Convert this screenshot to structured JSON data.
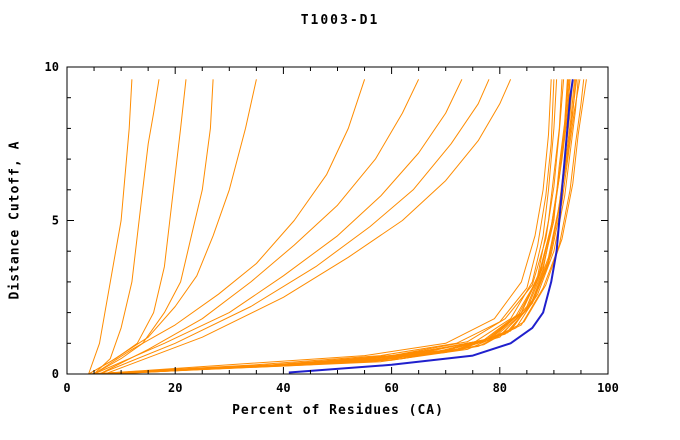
{
  "chart_data": {
    "type": "line",
    "title": "T1003-D1",
    "xlabel": "Percent of Residues (CA)",
    "ylabel": "Distance Cutoff, A",
    "xlim": [
      0,
      100
    ],
    "ylim": [
      0,
      10
    ],
    "x_major_ticks": [
      0,
      20,
      40,
      60,
      80,
      100
    ],
    "x_minor_step": 5,
    "y_major_ticks": [
      0,
      5,
      10
    ],
    "y_minor_step": 1,
    "grid": false,
    "legend": "none",
    "series_color": "#ff8c00",
    "highlight_color": "#2020cd",
    "axis_color": "#000000",
    "orange_series": [
      [
        [
          4,
          0
        ],
        [
          6,
          1
        ],
        [
          7,
          2
        ],
        [
          8,
          3
        ],
        [
          9,
          4
        ],
        [
          10,
          5
        ],
        [
          10.5,
          6
        ],
        [
          11,
          7
        ],
        [
          11.5,
          8
        ],
        [
          12,
          9.6
        ]
      ],
      [
        [
          5,
          0
        ],
        [
          8,
          0.5
        ],
        [
          10,
          1.5
        ],
        [
          12,
          3
        ],
        [
          13,
          4.5
        ],
        [
          14,
          6
        ],
        [
          15,
          7.5
        ],
        [
          16,
          8.5
        ],
        [
          17,
          9.6
        ]
      ],
      [
        [
          4,
          0
        ],
        [
          9,
          0.5
        ],
        [
          13,
          1
        ],
        [
          16,
          2
        ],
        [
          18,
          3.5
        ],
        [
          19,
          5
        ],
        [
          20,
          6.5
        ],
        [
          21,
          8
        ],
        [
          22,
          9.6
        ]
      ],
      [
        [
          5,
          0
        ],
        [
          10,
          0.5
        ],
        [
          14,
          1
        ],
        [
          18,
          2
        ],
        [
          21,
          3
        ],
        [
          23,
          4.5
        ],
        [
          25,
          6
        ],
        [
          26.5,
          8
        ],
        [
          27,
          9.6
        ]
      ],
      [
        [
          4,
          0
        ],
        [
          8,
          0.4
        ],
        [
          15,
          1.2
        ],
        [
          20,
          2.2
        ],
        [
          24,
          3.2
        ],
        [
          27,
          4.5
        ],
        [
          30,
          6
        ],
        [
          33,
          8
        ],
        [
          35,
          9.6
        ]
      ],
      [
        [
          5,
          0
        ],
        [
          12,
          0.8
        ],
        [
          20,
          1.6
        ],
        [
          28,
          2.6
        ],
        [
          35,
          3.6
        ],
        [
          42,
          5
        ],
        [
          48,
          6.5
        ],
        [
          52,
          8
        ],
        [
          55,
          9.6
        ]
      ],
      [
        [
          6,
          0
        ],
        [
          15,
          0.8
        ],
        [
          25,
          1.8
        ],
        [
          34,
          3
        ],
        [
          42,
          4.2
        ],
        [
          50,
          5.5
        ],
        [
          57,
          7
        ],
        [
          62,
          8.5
        ],
        [
          65,
          9.6
        ]
      ],
      [
        [
          5,
          0
        ],
        [
          18,
          1
        ],
        [
          30,
          2
        ],
        [
          40,
          3.2
        ],
        [
          50,
          4.5
        ],
        [
          58,
          5.8
        ],
        [
          65,
          7.2
        ],
        [
          70,
          8.5
        ],
        [
          73,
          9.6
        ]
      ],
      [
        [
          6,
          0
        ],
        [
          20,
          1
        ],
        [
          34,
          2.2
        ],
        [
          46,
          3.5
        ],
        [
          56,
          4.8
        ],
        [
          64,
          6
        ],
        [
          71,
          7.5
        ],
        [
          76,
          8.8
        ],
        [
          78,
          9.6
        ]
      ],
      [
        [
          7,
          0
        ],
        [
          25,
          1.2
        ],
        [
          40,
          2.5
        ],
        [
          52,
          3.8
        ],
        [
          62,
          5
        ],
        [
          70,
          6.3
        ],
        [
          76,
          7.6
        ],
        [
          80,
          8.8
        ],
        [
          82,
          9.6
        ]
      ],
      [
        [
          4,
          0
        ],
        [
          40,
          0.3
        ],
        [
          60,
          0.6
        ],
        [
          75,
          1
        ],
        [
          82,
          1.8
        ],
        [
          86,
          3
        ],
        [
          88,
          4.5
        ],
        [
          89,
          6
        ],
        [
          90,
          8
        ],
        [
          90.5,
          9.6
        ]
      ],
      [
        [
          5,
          0
        ],
        [
          45,
          0.3
        ],
        [
          65,
          0.6
        ],
        [
          78,
          1.1
        ],
        [
          84,
          2
        ],
        [
          87,
          3.2
        ],
        [
          89,
          5
        ],
        [
          90,
          6.5
        ],
        [
          91,
          8
        ],
        [
          91.5,
          9.6
        ]
      ],
      [
        [
          6,
          0
        ],
        [
          50,
          0.35
        ],
        [
          70,
          0.7
        ],
        [
          80,
          1.2
        ],
        [
          85,
          2.2
        ],
        [
          88,
          3.5
        ],
        [
          90,
          5
        ],
        [
          91,
          6.8
        ],
        [
          92,
          8.2
        ],
        [
          92.5,
          9.6
        ]
      ],
      [
        [
          5,
          0
        ],
        [
          55,
          0.4
        ],
        [
          72,
          0.8
        ],
        [
          82,
          1.4
        ],
        [
          86,
          2.4
        ],
        [
          89,
          3.8
        ],
        [
          91,
          5.5
        ],
        [
          92,
          7
        ],
        [
          93,
          8.5
        ],
        [
          93.5,
          9.6
        ]
      ],
      [
        [
          7,
          0
        ],
        [
          58,
          0.4
        ],
        [
          74,
          0.8
        ],
        [
          83,
          1.5
        ],
        [
          87,
          2.6
        ],
        [
          90,
          4
        ],
        [
          92,
          5.8
        ],
        [
          93,
          7.2
        ],
        [
          94,
          8.6
        ],
        [
          94.5,
          9.6
        ]
      ],
      [
        [
          6,
          0
        ],
        [
          60,
          0.45
        ],
        [
          76,
          0.9
        ],
        [
          84,
          1.6
        ],
        [
          88,
          2.8
        ],
        [
          91,
          4.2
        ],
        [
          93,
          6
        ],
        [
          94,
          7.5
        ],
        [
          95,
          8.8
        ],
        [
          95.5,
          9.6
        ]
      ],
      [
        [
          4,
          0
        ],
        [
          35,
          0.3
        ],
        [
          58,
          0.6
        ],
        [
          72,
          1
        ],
        [
          80,
          1.7
        ],
        [
          85,
          2.8
        ],
        [
          87,
          4.2
        ],
        [
          88.5,
          5.8
        ],
        [
          89.5,
          7.5
        ],
        [
          90,
          9.6
        ]
      ],
      [
        [
          5,
          0
        ],
        [
          30,
          0.3
        ],
        [
          55,
          0.6
        ],
        [
          70,
          1
        ],
        [
          79,
          1.8
        ],
        [
          84,
          3
        ],
        [
          86.5,
          4.5
        ],
        [
          88,
          6
        ],
        [
          89,
          7.8
        ],
        [
          89.5,
          9.6
        ]
      ],
      [
        [
          8,
          0
        ],
        [
          48,
          0.35
        ],
        [
          68,
          0.7
        ],
        [
          79,
          1.2
        ],
        [
          85,
          2.1
        ],
        [
          88,
          3.4
        ],
        [
          90,
          5.2
        ],
        [
          91.5,
          7
        ],
        [
          92.5,
          8.4
        ],
        [
          93,
          9.6
        ]
      ],
      [
        [
          6,
          0
        ],
        [
          52,
          0.4
        ],
        [
          71,
          0.8
        ],
        [
          81,
          1.3
        ],
        [
          86,
          2.3
        ],
        [
          89,
          3.6
        ],
        [
          91,
          5.4
        ],
        [
          92.5,
          7.1
        ],
        [
          93.5,
          8.5
        ],
        [
          94,
          9.6
        ]
      ],
      [
        [
          5,
          0
        ],
        [
          42,
          0.3
        ],
        [
          63,
          0.65
        ],
        [
          77,
          1.1
        ],
        [
          83,
          1.9
        ],
        [
          87,
          3.1
        ],
        [
          89.5,
          4.8
        ],
        [
          91,
          6.4
        ],
        [
          92,
          8.1
        ],
        [
          92.8,
          9.6
        ]
      ],
      [
        [
          7,
          0
        ],
        [
          46,
          0.35
        ],
        [
          66,
          0.7
        ],
        [
          78,
          1.15
        ],
        [
          84,
          2
        ],
        [
          87.5,
          3.3
        ],
        [
          89.8,
          5
        ],
        [
          91.2,
          6.7
        ],
        [
          92.2,
          8.2
        ],
        [
          93,
          9.6
        ]
      ],
      [
        [
          4,
          0
        ],
        [
          38,
          0.3
        ],
        [
          60,
          0.6
        ],
        [
          74,
          1.05
        ],
        [
          81,
          1.8
        ],
        [
          86,
          2.9
        ],
        [
          88.5,
          4.4
        ],
        [
          90,
          6.1
        ],
        [
          91,
          7.9
        ],
        [
          91.8,
          9.6
        ]
      ],
      [
        [
          6,
          0
        ],
        [
          56,
          0.4
        ],
        [
          73,
          0.8
        ],
        [
          82,
          1.45
        ],
        [
          86.5,
          2.5
        ],
        [
          89.5,
          3.9
        ],
        [
          91.5,
          5.6
        ],
        [
          92.8,
          7.3
        ],
        [
          93.8,
          8.6
        ],
        [
          94.8,
          9.6
        ]
      ],
      [
        [
          5,
          0
        ],
        [
          62,
          0.5
        ],
        [
          77,
          0.95
        ],
        [
          84.5,
          1.7
        ],
        [
          88.5,
          2.9
        ],
        [
          91.5,
          4.4
        ],
        [
          93.5,
          6.2
        ],
        [
          94.5,
          7.8
        ],
        [
          95.5,
          9
        ],
        [
          96,
          9.6
        ]
      ],
      [
        [
          9,
          0
        ],
        [
          50,
          0.4
        ],
        [
          69,
          0.75
        ],
        [
          80,
          1.25
        ],
        [
          85.5,
          2.2
        ],
        [
          88.8,
          3.5
        ],
        [
          90.8,
          5.3
        ],
        [
          92.2,
          7
        ],
        [
          93.2,
          8.4
        ],
        [
          93.8,
          9.6
        ]
      ],
      [
        [
          5,
          0
        ],
        [
          44,
          0.32
        ],
        [
          64,
          0.66
        ],
        [
          77.5,
          1.12
        ],
        [
          83.5,
          1.95
        ],
        [
          87.2,
          3.15
        ],
        [
          89.6,
          4.9
        ],
        [
          91,
          6.5
        ],
        [
          92,
          8.15
        ],
        [
          92.6,
          9.6
        ]
      ],
      [
        [
          6,
          0
        ],
        [
          54,
          0.4
        ],
        [
          72,
          0.8
        ],
        [
          81.5,
          1.35
        ],
        [
          86,
          2.35
        ],
        [
          89,
          3.7
        ],
        [
          91,
          5.45
        ],
        [
          92.4,
          7.05
        ],
        [
          93.4,
          8.45
        ],
        [
          94.2,
          9.6
        ]
      ]
    ],
    "highlight_series": [
      [
        41,
        0.05
      ],
      [
        60,
        0.3
      ],
      [
        75,
        0.6
      ],
      [
        82,
        1
      ],
      [
        86,
        1.5
      ],
      [
        88,
        2
      ],
      [
        89.5,
        3
      ],
      [
        90.5,
        4
      ],
      [
        91,
        5
      ],
      [
        91.5,
        6
      ],
      [
        92,
        7
      ],
      [
        92.5,
        8
      ],
      [
        93,
        9
      ],
      [
        93.5,
        9.6
      ]
    ]
  }
}
